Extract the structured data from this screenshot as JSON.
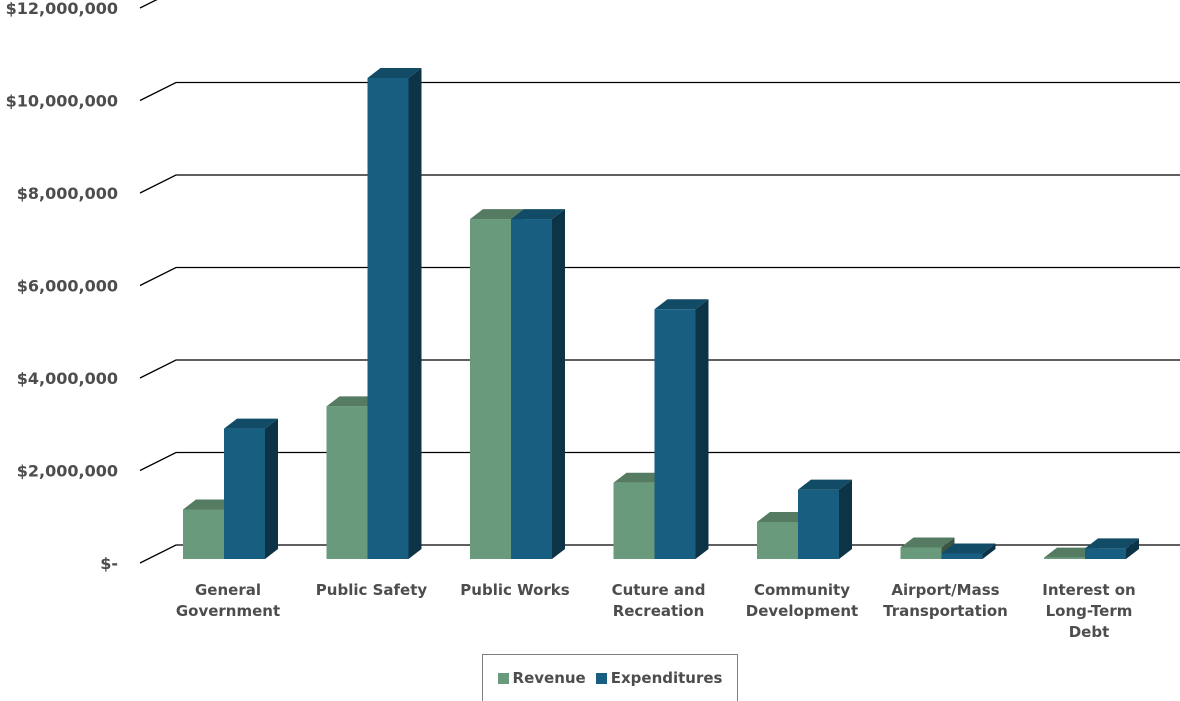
{
  "chart_data": {
    "type": "bar",
    "categories": [
      [
        "General",
        "Government"
      ],
      [
        "Public Safety"
      ],
      [
        "Public Works"
      ],
      [
        "Cuture and",
        "Recreation"
      ],
      [
        "Community",
        "Development"
      ],
      [
        "Airport/Mass",
        "Transportation"
      ],
      [
        "Interest on",
        "Long-Term",
        "Debt"
      ]
    ],
    "series": [
      {
        "name": "Revenue",
        "color": "#6a9a7c",
        "values": [
          1070000,
          3300000,
          7350000,
          1650000,
          800000,
          250000,
          30000
        ]
      },
      {
        "name": "Expenditures",
        "color": "#175e80",
        "values": [
          2820000,
          10400000,
          7350000,
          5400000,
          1500000,
          120000,
          230000
        ]
      }
    ],
    "yticks": [
      "$-",
      "$2,000,000",
      "$4,000,000",
      "$6,000,000",
      "$8,000,000",
      "$10,000,000",
      "$12,000,000"
    ],
    "ylim": [
      0,
      12000000
    ],
    "grid": true,
    "legend_position": "bottom"
  }
}
